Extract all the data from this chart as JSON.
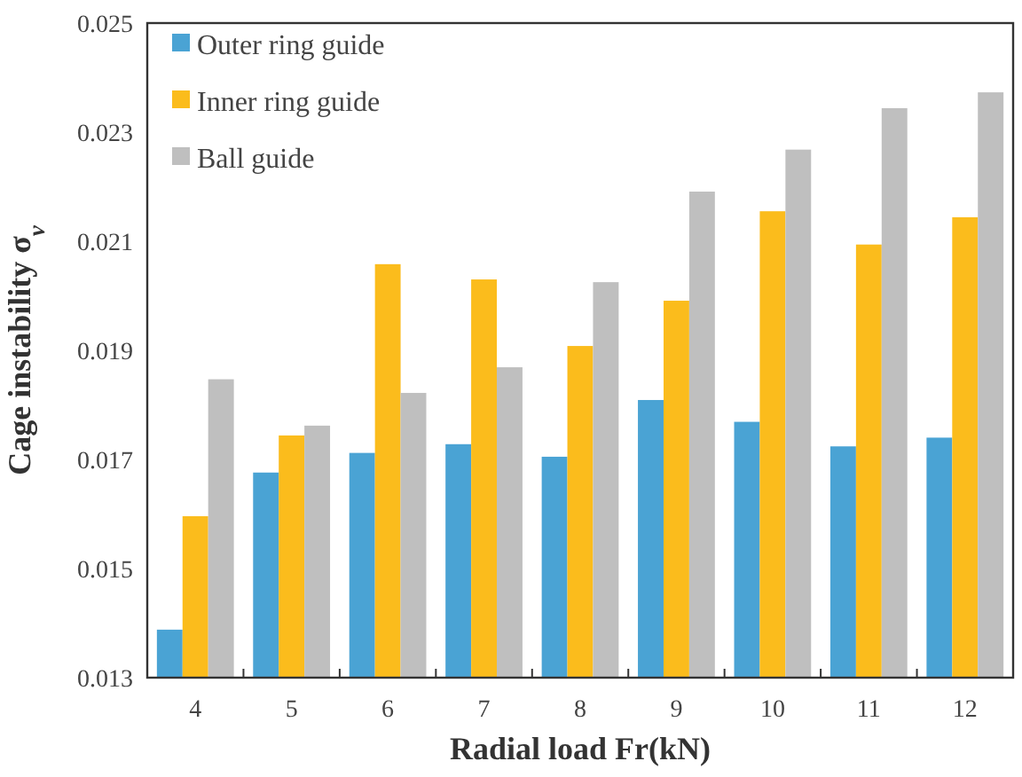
{
  "chart_data": {
    "type": "bar",
    "xlabel": "Radial load  Fr(kN)",
    "ylabel": "Cage instability σ$_{v}$",
    "categories": [
      "4",
      "5",
      "6",
      "7",
      "8",
      "9",
      "10",
      "11",
      "12"
    ],
    "series": [
      {
        "name": "Outer ring guide",
        "color": "#4aa3d4",
        "values": [
          0.01388,
          0.01676,
          0.01712,
          0.01728,
          0.01705,
          0.01809,
          0.01769,
          0.01724,
          0.0174
        ]
      },
      {
        "name": "Inner ring guide",
        "color": "#fbbc1c",
        "values": [
          0.01596,
          0.01744,
          0.02058,
          0.0203,
          0.01908,
          0.01991,
          0.02155,
          0.02094,
          0.02144
        ]
      },
      {
        "name": "Ball guide",
        "color": "#bfbfbf",
        "values": [
          0.01847,
          0.01762,
          0.01822,
          0.01869,
          0.02025,
          0.02191,
          0.02268,
          0.02344,
          0.02373
        ]
      }
    ],
    "ylim": [
      0.013,
      0.025
    ],
    "yticks": [
      0.013,
      0.015,
      0.017,
      0.019,
      0.021,
      0.023,
      0.025
    ],
    "grid": false,
    "legend": "top left"
  }
}
